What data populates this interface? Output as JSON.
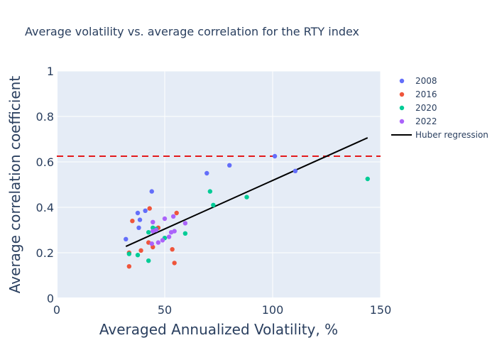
{
  "chart_data": {
    "type": "scatter",
    "title": "Average volatility vs. average correlation for the RTY index",
    "xlabel": "Averaged Annualized Volatility, %",
    "ylabel": "Average correlation coefficient",
    "xlim": [
      0,
      150
    ],
    "ylim": [
      0,
      1
    ],
    "xticks": [
      0,
      50,
      100,
      150
    ],
    "yticks": [
      0,
      0.2,
      0.4,
      0.6,
      0.8,
      1
    ],
    "xtick_labels": [
      "0",
      "50",
      "100",
      "150"
    ],
    "ytick_labels": [
      "0",
      "0.2",
      "0.4",
      "0.6",
      "0.8",
      "1"
    ],
    "grid": true,
    "plot_background": "#e5ecf6",
    "legend_position": "right",
    "series": [
      {
        "name": "2008",
        "color": "#636efa",
        "points": [
          [
            32,
            0.26
          ],
          [
            37.5,
            0.375
          ],
          [
            38.5,
            0.345
          ],
          [
            38,
            0.31
          ],
          [
            41,
            0.385
          ],
          [
            44,
            0.47
          ],
          [
            69.5,
            0.55
          ],
          [
            80,
            0.585
          ],
          [
            101,
            0.625
          ],
          [
            110.5,
            0.56
          ]
        ]
      },
      {
        "name": "2016",
        "color": "#ef553b",
        "points": [
          [
            33.5,
            0.14
          ],
          [
            33.5,
            0.2
          ],
          [
            35,
            0.34
          ],
          [
            39,
            0.21
          ],
          [
            42.5,
            0.245
          ],
          [
            43,
            0.395
          ],
          [
            44.5,
            0.225
          ],
          [
            47,
            0.31
          ],
          [
            53.5,
            0.215
          ],
          [
            54.5,
            0.155
          ],
          [
            55.5,
            0.375
          ]
        ]
      },
      {
        "name": "2020",
        "color": "#00cc96",
        "points": [
          [
            33.5,
            0.195
          ],
          [
            37.5,
            0.19
          ],
          [
            42.5,
            0.165
          ],
          [
            42.5,
            0.29
          ],
          [
            44.5,
            0.31
          ],
          [
            46,
            0.305
          ],
          [
            50,
            0.265
          ],
          [
            59.5,
            0.285
          ],
          [
            71,
            0.47
          ],
          [
            72.5,
            0.41
          ],
          [
            88,
            0.445
          ],
          [
            144,
            0.525
          ]
        ]
      },
      {
        "name": "2022",
        "color": "#ab63fa",
        "points": [
          [
            44,
            0.24
          ],
          [
            44.5,
            0.335
          ],
          [
            44.5,
            0.295
          ],
          [
            46,
            0.3
          ],
          [
            47,
            0.245
          ],
          [
            49,
            0.255
          ],
          [
            50,
            0.35
          ],
          [
            52,
            0.27
          ],
          [
            53,
            0.29
          ],
          [
            54,
            0.36
          ],
          [
            54.5,
            0.295
          ],
          [
            59.5,
            0.33
          ]
        ]
      }
    ],
    "regression": {
      "name": "Huber regression",
      "color": "#000000",
      "x": [
        32,
        144
      ],
      "y": [
        0.228,
        0.706
      ]
    },
    "reference_line": {
      "y": 0.625,
      "color": "#e31a1c",
      "dash": "dashed"
    }
  }
}
